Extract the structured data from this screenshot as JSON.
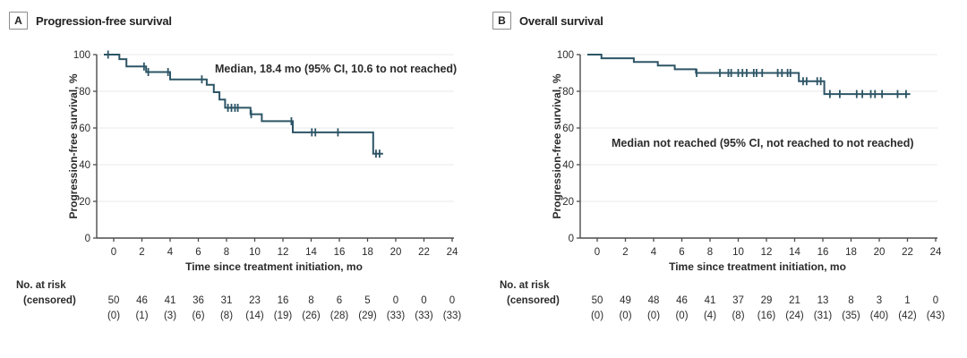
{
  "figure": {
    "colors": {
      "curve": "#2d5566",
      "axis": "#4c4c4c",
      "grid": "#eaeaea",
      "text": "#2b2b2b",
      "annotation": "#333333",
      "panel_box_border": "#8c8c8c"
    }
  },
  "chart_data": [
    {
      "type": "line",
      "subtype": "kaplan-meier-step",
      "panel_label": "A",
      "title": "Progression-free survival",
      "annotation": "Median, 18.4 mo (95% CI, 10.6 to not reached)",
      "xlabel": "Time since treatment initiation, mo",
      "ylabel": "Progression-free survival, %",
      "xlim": [
        0,
        24
      ],
      "ylim": [
        0,
        100
      ],
      "xticks": [
        0,
        2,
        4,
        6,
        8,
        10,
        12,
        14,
        16,
        18,
        20,
        22,
        24
      ],
      "yticks": [
        0,
        20,
        40,
        60,
        80,
        100
      ],
      "grid": "horizontal-light",
      "legend": "none",
      "curve_start_t": -0.7,
      "curve_end_t": 19.1,
      "steps": [
        [
          0.4,
          97.5
        ],
        [
          0.9,
          93.5
        ],
        [
          2.3,
          90.5
        ],
        [
          4.0,
          86.5
        ],
        [
          6.6,
          83.5
        ],
        [
          7.1,
          79.5
        ],
        [
          7.5,
          75.5
        ],
        [
          7.9,
          71.0
        ],
        [
          9.7,
          67.5
        ],
        [
          10.5,
          63.7
        ],
        [
          12.7,
          57.6
        ],
        [
          18.4,
          46.0
        ]
      ],
      "censor_marks": [
        [
          -0.4,
          100
        ],
        [
          2.15,
          93.5
        ],
        [
          2.45,
          90.5
        ],
        [
          3.85,
          90.5
        ],
        [
          6.25,
          86.5
        ],
        [
          8.1,
          71.0
        ],
        [
          8.35,
          71.0
        ],
        [
          8.6,
          71.0
        ],
        [
          8.8,
          71.0
        ],
        [
          9.75,
          67.5
        ],
        [
          12.6,
          63.7
        ],
        [
          14.05,
          57.6
        ],
        [
          14.3,
          57.6
        ],
        [
          15.9,
          57.6
        ],
        [
          18.6,
          46.0
        ],
        [
          18.85,
          46.0
        ]
      ],
      "at_risk_label": "No. at risk",
      "censored_label": "(censored)",
      "at_risk": [
        50,
        46,
        41,
        36,
        31,
        23,
        16,
        8,
        6,
        5,
        0,
        0,
        0
      ],
      "censored": [
        0,
        1,
        3,
        6,
        8,
        14,
        19,
        26,
        28,
        29,
        33,
        33,
        33
      ]
    },
    {
      "type": "line",
      "subtype": "kaplan-meier-step",
      "panel_label": "B",
      "title": "Overall survival",
      "annotation": "Median not reached (95% CI, not reached to not reached)",
      "xlabel": "Time since treatment initiation, mo",
      "ylabel": "Progression-free survival, %",
      "xlim": [
        0,
        24
      ],
      "ylim": [
        0,
        100
      ],
      "xticks": [
        0,
        2,
        4,
        6,
        8,
        10,
        12,
        14,
        16,
        18,
        20,
        22,
        24
      ],
      "yticks": [
        0,
        20,
        40,
        60,
        80,
        100
      ],
      "grid": "horizontal-light",
      "legend": "none",
      "curve_start_t": -0.7,
      "curve_end_t": 22.2,
      "steps": [
        [
          0.3,
          98.0
        ],
        [
          2.6,
          96.0
        ],
        [
          4.3,
          94.0
        ],
        [
          5.5,
          92.0
        ],
        [
          7.0,
          90.0
        ],
        [
          14.3,
          85.5
        ],
        [
          16.1,
          78.5
        ]
      ],
      "censor_marks": [
        [
          7.05,
          90
        ],
        [
          8.7,
          90
        ],
        [
          9.3,
          90
        ],
        [
          9.5,
          90
        ],
        [
          10.0,
          90
        ],
        [
          10.3,
          90
        ],
        [
          10.6,
          90
        ],
        [
          11.1,
          90
        ],
        [
          11.3,
          90
        ],
        [
          11.7,
          90
        ],
        [
          12.8,
          90
        ],
        [
          13.1,
          90
        ],
        [
          13.5,
          90
        ],
        [
          13.7,
          90
        ],
        [
          14.6,
          85.5
        ],
        [
          14.85,
          85.5
        ],
        [
          15.6,
          85.5
        ],
        [
          15.85,
          85.5
        ],
        [
          16.5,
          78.5
        ],
        [
          17.2,
          78.5
        ],
        [
          18.4,
          78.5
        ],
        [
          18.8,
          78.5
        ],
        [
          19.4,
          78.5
        ],
        [
          19.7,
          78.5
        ],
        [
          20.2,
          78.5
        ],
        [
          21.3,
          78.5
        ],
        [
          21.9,
          78.5
        ]
      ],
      "at_risk_label": "No. at risk",
      "censored_label": "(censored)",
      "at_risk": [
        50,
        49,
        48,
        46,
        41,
        37,
        29,
        21,
        13,
        8,
        3,
        1,
        0
      ],
      "censored": [
        0,
        0,
        0,
        0,
        4,
        8,
        16,
        24,
        31,
        35,
        40,
        42,
        43
      ]
    }
  ]
}
